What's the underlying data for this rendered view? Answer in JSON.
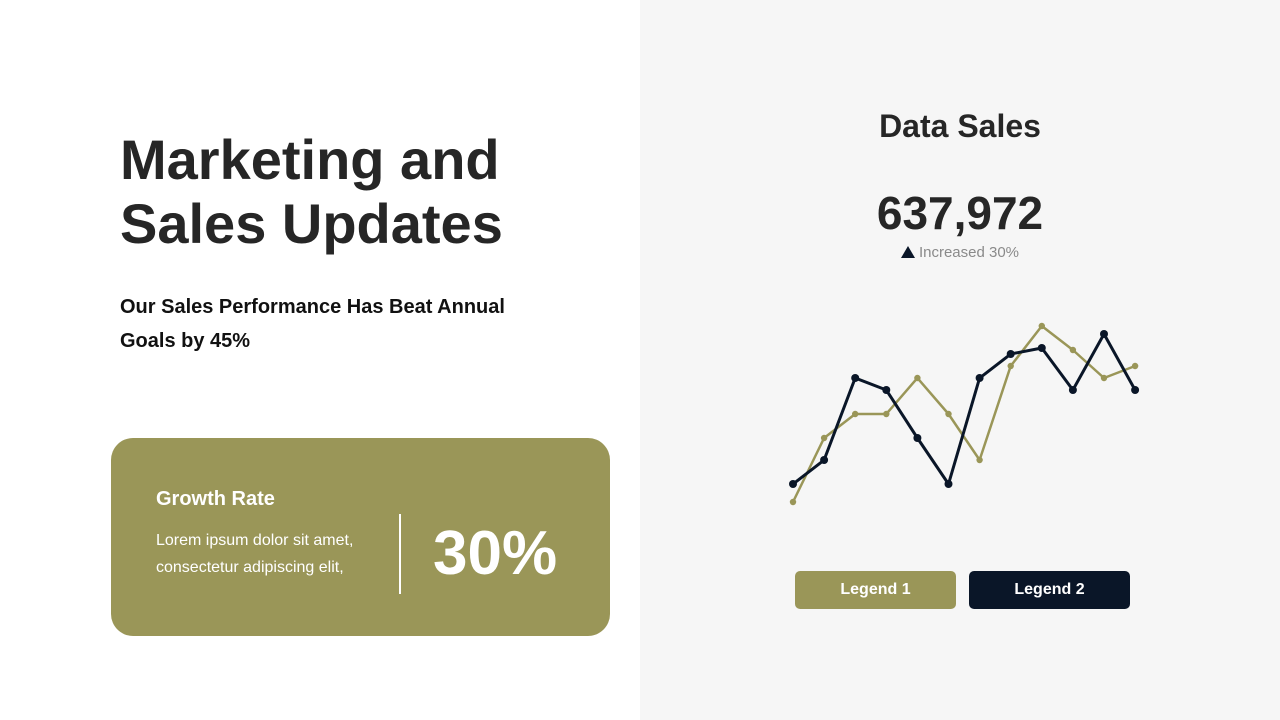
{
  "left": {
    "title_line1": "Marketing and",
    "title_line2": "Sales Updates",
    "subtitle": "Our Sales Performance Has Beat Annual Goals by 45%",
    "card": {
      "title": "Growth Rate",
      "description": "Lorem ipsum dolor sit amet, consectetur adipiscing elit,",
      "percent": "30%"
    }
  },
  "right": {
    "title": "Data Sales",
    "value": "637,972",
    "change_icon": "triangle-up-icon",
    "change_text": "Increased 30%"
  },
  "colors": {
    "gold": "#9a9658",
    "navy": "#0a1628",
    "background_right": "#f6f6f6"
  },
  "chart_data": {
    "type": "line",
    "x": [
      1,
      2,
      3,
      4,
      5,
      6,
      7,
      8,
      9,
      10,
      11,
      12
    ],
    "ylim": [
      0,
      100
    ],
    "grid": false,
    "legend_placement": "bottom",
    "series": [
      {
        "name": "Legend 1",
        "color": "#9a9658",
        "values": [
          9,
          41,
          53,
          53,
          71,
          53,
          30,
          77,
          97,
          85,
          71,
          77
        ]
      },
      {
        "name": "Legend 2",
        "color": "#0a1628",
        "values": [
          18,
          30,
          71,
          65,
          41,
          18,
          71,
          83,
          86,
          65,
          93,
          65
        ]
      }
    ]
  }
}
